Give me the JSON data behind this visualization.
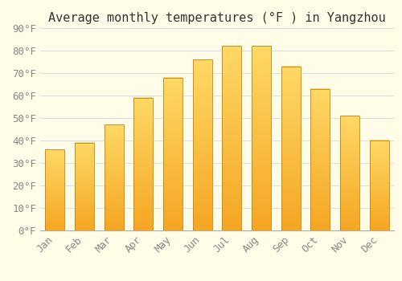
{
  "title": "Average monthly temperatures (°F ) in Yangzhou",
  "months": [
    "Jan",
    "Feb",
    "Mar",
    "Apr",
    "May",
    "Jun",
    "Jul",
    "Aug",
    "Sep",
    "Oct",
    "Nov",
    "Dec"
  ],
  "values": [
    36,
    39,
    47,
    59,
    68,
    76,
    82,
    82,
    73,
    63,
    51,
    40
  ],
  "bar_color_bottom": "#F5A623",
  "bar_color_top": "#FFD966",
  "bar_edge_color": "#C8830A",
  "background_color": "#FFFDE7",
  "grid_color": "#DDDDDD",
  "ylim": [
    0,
    90
  ],
  "ytick_step": 10,
  "title_fontsize": 11,
  "tick_fontsize": 9,
  "font_family": "monospace"
}
